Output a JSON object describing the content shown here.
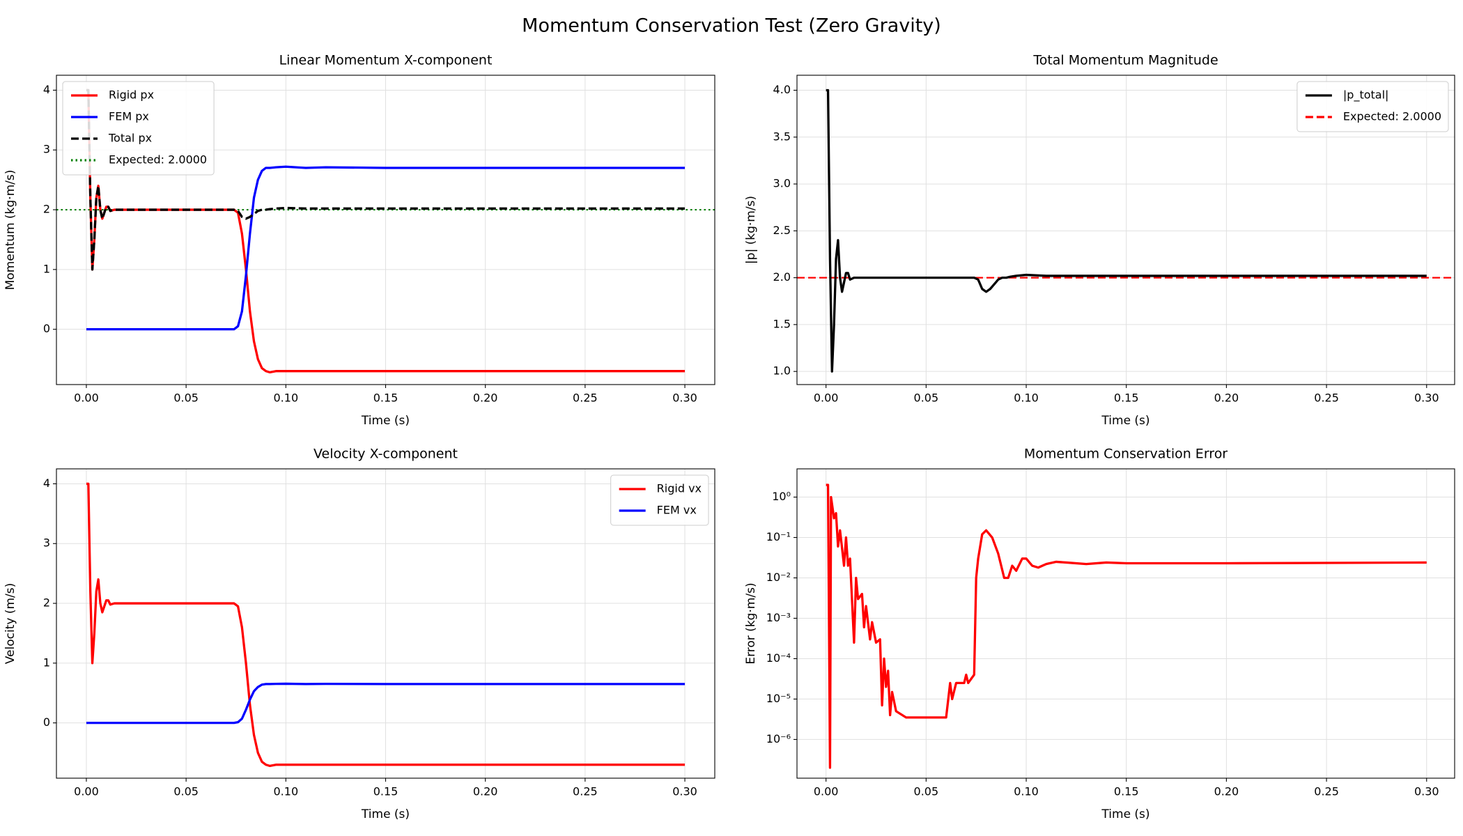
{
  "title": "Momentum Conservation Test (Zero Gravity)",
  "chart_data": [
    {
      "type": "line",
      "title": "Linear Momentum X-component",
      "x_label": "Time (s)",
      "y_label": "Momentum (kg·m/s)",
      "x": [
        0,
        0.001,
        0.002,
        0.003,
        0.004,
        0.005,
        0.006,
        0.007,
        0.008,
        0.009,
        0.01,
        0.011,
        0.012,
        0.014,
        0.016,
        0.02,
        0.04,
        0.06,
        0.074,
        0.076,
        0.078,
        0.08,
        0.082,
        0.084,
        0.086,
        0.088,
        0.09,
        0.092,
        0.095,
        0.1,
        0.11,
        0.12,
        0.15,
        0.2,
        0.25,
        0.3
      ],
      "series": [
        {
          "name": "Rigid px",
          "color": "#ff0000",
          "style": "solid",
          "values": [
            4,
            4,
            2.2,
            1.0,
            1.5,
            2.2,
            2.4,
            2.0,
            1.85,
            1.95,
            2.05,
            2.05,
            1.98,
            2.0,
            2.0,
            2.0,
            2.0,
            2.0,
            2.0,
            1.95,
            1.6,
            1.0,
            0.3,
            -0.2,
            -0.5,
            -0.65,
            -0.7,
            -0.72,
            -0.7,
            -0.7,
            -0.7,
            -0.7,
            -0.7,
            -0.7,
            -0.7,
            -0.7
          ]
        },
        {
          "name": "FEM px",
          "color": "#0000ff",
          "style": "solid",
          "values": [
            0,
            0,
            0,
            0,
            0,
            0,
            0,
            0,
            0,
            0,
            0,
            0,
            0,
            0,
            0,
            0,
            0,
            0,
            0,
            0.05,
            0.3,
            0.9,
            1.6,
            2.2,
            2.5,
            2.65,
            2.7,
            2.7,
            2.71,
            2.72,
            2.7,
            2.71,
            2.7,
            2.7,
            2.7,
            2.7
          ]
        },
        {
          "name": "Total px",
          "color": "#000000",
          "style": "dashed",
          "values": [
            4,
            4,
            2.2,
            1.0,
            1.5,
            2.2,
            2.4,
            2.0,
            1.85,
            1.95,
            2.05,
            2.05,
            1.98,
            2.0,
            2.0,
            2.0,
            2.0,
            2.0,
            2.0,
            1.98,
            1.88,
            1.85,
            1.88,
            1.93,
            1.98,
            2.0,
            2.0,
            2.01,
            2.02,
            2.03,
            2.02,
            2.02,
            2.02,
            2.02,
            2.02,
            2.02
          ]
        }
      ],
      "reference_lines": [
        {
          "name": "Expected: 2.0000",
          "value": 2,
          "color": "#008000",
          "style": "dotted"
        }
      ],
      "xlim": [
        -0.015,
        0.315
      ],
      "ylim": [
        -0.925,
        4.25
      ],
      "xticks": [
        {
          "value": 0,
          "label": "0.00"
        },
        {
          "value": 0.05,
          "label": "0.05"
        },
        {
          "value": 0.1,
          "label": "0.10"
        },
        {
          "value": 0.15,
          "label": "0.15"
        },
        {
          "value": 0.2,
          "label": "0.20"
        },
        {
          "value": 0.25,
          "label": "0.25"
        },
        {
          "value": 0.3,
          "label": "0.30"
        }
      ],
      "yticks": [
        0,
        1,
        2,
        3,
        4
      ],
      "grid": true,
      "legend": "upper-left"
    },
    {
      "type": "line",
      "title": "Total Momentum Magnitude",
      "x_label": "Time (s)",
      "y_label": "|p| (kg·m/s)",
      "x": [
        0,
        0.001,
        0.002,
        0.003,
        0.004,
        0.005,
        0.006,
        0.007,
        0.008,
        0.009,
        0.01,
        0.011,
        0.012,
        0.014,
        0.016,
        0.02,
        0.04,
        0.06,
        0.074,
        0.076,
        0.078,
        0.08,
        0.082,
        0.084,
        0.086,
        0.088,
        0.09,
        0.092,
        0.095,
        0.1,
        0.11,
        0.12,
        0.15,
        0.2,
        0.25,
        0.3
      ],
      "series": [
        {
          "name": "|p_total|",
          "color": "#000000",
          "style": "solid",
          "values": [
            4,
            4,
            2.2,
            1.0,
            1.5,
            2.2,
            2.4,
            2.0,
            1.85,
            1.95,
            2.05,
            2.05,
            1.98,
            2.0,
            2.0,
            2.0,
            2.0,
            2.0,
            2.0,
            1.98,
            1.88,
            1.85,
            1.88,
            1.93,
            1.98,
            2.0,
            2.0,
            2.01,
            2.02,
            2.03,
            2.02,
            2.02,
            2.02,
            2.02,
            2.02,
            2.02
          ]
        }
      ],
      "reference_lines": [
        {
          "name": "Expected: 2.0000",
          "value": 2,
          "color": "#ff0000",
          "style": "dashed"
        }
      ],
      "xlim": [
        -0.0145,
        0.314
      ],
      "ylim": [
        0.86,
        4.16
      ],
      "xticks": [
        {
          "value": 0,
          "label": "0.00"
        },
        {
          "value": 0.05,
          "label": "0.05"
        },
        {
          "value": 0.1,
          "label": "0.10"
        },
        {
          "value": 0.15,
          "label": "0.15"
        },
        {
          "value": 0.2,
          "label": "0.20"
        },
        {
          "value": 0.25,
          "label": "0.25"
        },
        {
          "value": 0.3,
          "label": "0.30"
        }
      ],
      "yticks": [
        {
          "value": 1,
          "label": "1.0"
        },
        1.5,
        {
          "value": 2,
          "label": "2.0"
        },
        2.5,
        {
          "value": 3,
          "label": "3.0"
        },
        3.5,
        {
          "value": 4,
          "label": "4.0"
        }
      ],
      "grid": true,
      "legend": "upper-right"
    },
    {
      "type": "line",
      "title": "Velocity X-component",
      "x_label": "Time (s)",
      "y_label": "Velocity (m/s)",
      "x": [
        0,
        0.001,
        0.002,
        0.003,
        0.004,
        0.005,
        0.006,
        0.007,
        0.008,
        0.009,
        0.01,
        0.011,
        0.012,
        0.014,
        0.016,
        0.02,
        0.04,
        0.06,
        0.074,
        0.076,
        0.078,
        0.08,
        0.082,
        0.084,
        0.086,
        0.088,
        0.09,
        0.092,
        0.095,
        0.1,
        0.11,
        0.12,
        0.15,
        0.2,
        0.25,
        0.3
      ],
      "series": [
        {
          "name": "Rigid vx",
          "color": "#ff0000",
          "style": "solid",
          "values": [
            4,
            4,
            2.2,
            1.0,
            1.5,
            2.2,
            2.4,
            2.0,
            1.85,
            1.95,
            2.05,
            2.05,
            1.98,
            2.0,
            2.0,
            2.0,
            2.0,
            2.0,
            2.0,
            1.95,
            1.6,
            1.0,
            0.3,
            -0.2,
            -0.5,
            -0.65,
            -0.7,
            -0.72,
            -0.7,
            -0.7,
            -0.7,
            -0.7,
            -0.7,
            -0.7,
            -0.7,
            -0.7
          ]
        },
        {
          "name": "FEM vx",
          "color": "#0000ff",
          "style": "solid",
          "values": [
            0,
            0,
            0,
            0,
            0,
            0,
            0,
            0,
            0,
            0,
            0,
            0,
            0,
            0,
            0,
            0,
            0,
            0,
            0,
            0.012,
            0.07,
            0.22,
            0.39,
            0.53,
            0.6,
            0.64,
            0.65,
            0.65,
            0.653,
            0.655,
            0.65,
            0.653,
            0.65,
            0.65,
            0.65,
            0.65
          ]
        }
      ],
      "xlim": [
        -0.015,
        0.315
      ],
      "ylim": [
        -0.925,
        4.25
      ],
      "xticks": [
        {
          "value": 0,
          "label": "0.00"
        },
        {
          "value": 0.05,
          "label": "0.05"
        },
        {
          "value": 0.1,
          "label": "0.10"
        },
        {
          "value": 0.15,
          "label": "0.15"
        },
        {
          "value": 0.2,
          "label": "0.20"
        },
        {
          "value": 0.25,
          "label": "0.25"
        },
        {
          "value": 0.3,
          "label": "0.30"
        }
      ],
      "yticks": [
        0,
        1,
        2,
        3,
        4
      ],
      "grid": true,
      "legend": "upper-right"
    },
    {
      "type": "line",
      "title": "Momentum Conservation Error",
      "x_label": "Time (s)",
      "y_label": "Error (kg·m/s)",
      "x": [
        0,
        0.001,
        0.002,
        0.0025,
        0.004,
        0.005,
        0.006,
        0.007,
        0.009,
        0.01,
        0.011,
        0.012,
        0.014,
        0.015,
        0.016,
        0.018,
        0.019,
        0.02,
        0.022,
        0.023,
        0.025,
        0.027,
        0.028,
        0.029,
        0.03,
        0.031,
        0.032,
        0.033,
        0.035,
        0.04,
        0.06,
        0.062,
        0.063,
        0.065,
        0.069,
        0.07,
        0.071,
        0.074,
        0.075,
        0.076,
        0.077,
        0.078,
        0.08,
        0.083,
        0.086,
        0.089,
        0.091,
        0.093,
        0.095,
        0.098,
        0.1,
        0.103,
        0.106,
        0.11,
        0.115,
        0.12,
        0.13,
        0.14,
        0.15,
        0.2,
        0.3
      ],
      "series": [
        {
          "name": "Error",
          "color": "#ff0000",
          "style": "solid",
          "values": [
            2,
            2,
            2e-07,
            1,
            0.3,
            0.4,
            0.06,
            0.15,
            0.02,
            0.1,
            0.02,
            0.03,
            0.00025,
            0.01,
            0.003,
            0.004,
            0.0006,
            0.002,
            0.0003,
            0.0008,
            0.00025,
            0.0003,
            7e-06,
            0.0001,
            2e-05,
            5e-05,
            4e-06,
            1.5e-05,
            5e-06,
            3.5e-06,
            3.5e-06,
            2.5e-05,
            1e-05,
            2.5e-05,
            2.5e-05,
            4e-05,
            2.5e-05,
            4e-05,
            0.01,
            0.03,
            0.06,
            0.12,
            0.15,
            0.1,
            0.04,
            0.01,
            0.01,
            0.02,
            0.015,
            0.03,
            0.03,
            0.02,
            0.018,
            0.022,
            0.025,
            0.024,
            0.022,
            0.024,
            0.023,
            0.023,
            0.024
          ]
        }
      ],
      "xlim": [
        -0.0145,
        0.314
      ],
      "ylim": [
        1.1e-07,
        5
      ],
      "yscale": "log",
      "xticks": [
        {
          "value": 0,
          "label": "0.00"
        },
        {
          "value": 0.05,
          "label": "0.05"
        },
        {
          "value": 0.1,
          "label": "0.10"
        },
        {
          "value": 0.15,
          "label": "0.15"
        },
        {
          "value": 0.2,
          "label": "0.20"
        },
        {
          "value": 0.25,
          "label": "0.25"
        },
        {
          "value": 0.3,
          "label": "0.30"
        }
      ],
      "yticks": [
        {
          "value": 1e-06,
          "label": "10⁻⁶"
        },
        {
          "value": 1e-05,
          "label": "10⁻⁵"
        },
        {
          "value": 0.0001,
          "label": "10⁻⁴"
        },
        {
          "value": 0.001,
          "label": "10⁻³"
        },
        {
          "value": 0.01,
          "label": "10⁻²"
        },
        {
          "value": 0.1,
          "label": "10⁻¹"
        },
        {
          "value": 1,
          "label": "10⁰"
        }
      ],
      "grid": true
    }
  ]
}
